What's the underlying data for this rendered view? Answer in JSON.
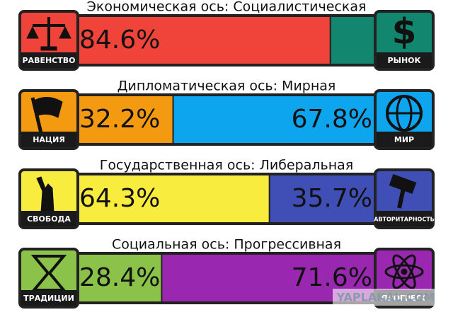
{
  "axes": [
    {
      "title": "Экономическая ось: Социалистическая",
      "left_label": "РАВЕНСТВО",
      "right_label": "РЫНОК",
      "left_value": 84.6,
      "left_value_label": "84.6%",
      "right_value": 15.4,
      "left_color": "#f0443a",
      "right_color": "#13866f"
    },
    {
      "title": "Дипломатическая ось: Мирная",
      "left_label": "НАЦИЯ",
      "right_label": "МИР",
      "left_value": 32.2,
      "left_value_label": "32.2%",
      "right_value": 67.8,
      "right_value_label": "67.8%",
      "left_color": "#f49a10",
      "right_color": "#0ea5ef"
    },
    {
      "title": "Государственная ось: Либеральная",
      "left_label": "СВОБОДА",
      "right_label": "АВТОРИТАРНОСТЬ",
      "left_value": 64.3,
      "left_value_label": "64.3%",
      "right_value": 35.7,
      "right_value_label": "35.7%",
      "left_color": "#f8ec3e",
      "right_color": "#3f4fb5"
    },
    {
      "title": "Социальная ось: Прогрессивная",
      "left_label": "ТРАДИЦИИ",
      "right_label": "ПРОГРЕСС",
      "left_value": 28.4,
      "left_value_label": "28.4%",
      "right_value": 71.6,
      "right_value_label": "71.6%",
      "left_color": "#8bc24a",
      "right_color": "#9a27b0"
    }
  ],
  "watermark": "YAPLAKAL.COM"
}
